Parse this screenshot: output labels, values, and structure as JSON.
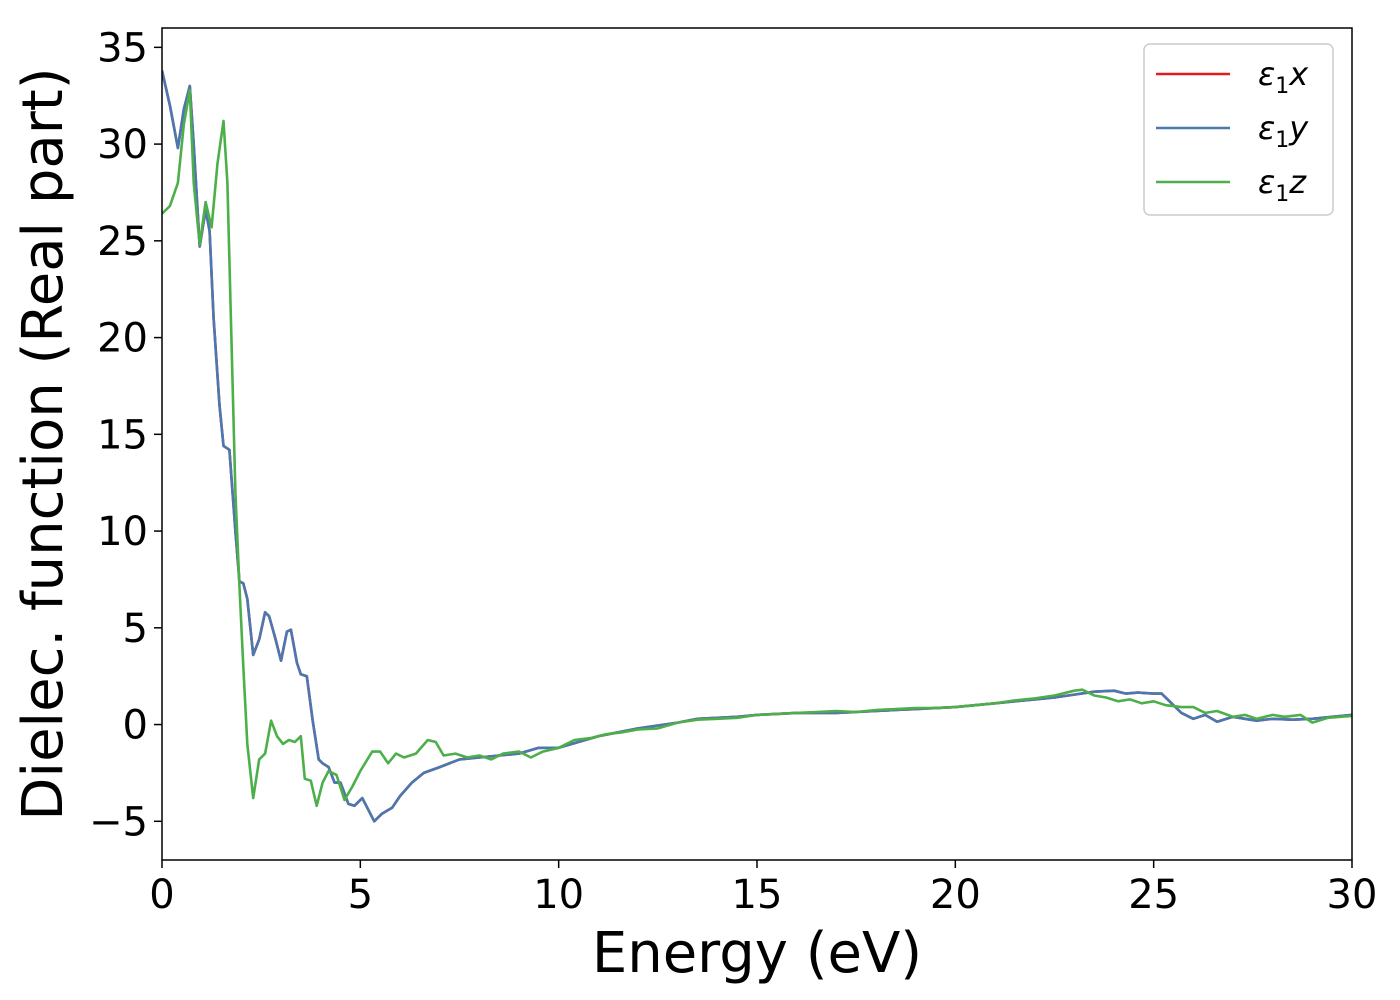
{
  "chart_data": {
    "type": "line",
    "title": "",
    "xlabel": "Energy (eV)",
    "ylabel": "Dielec. function (Real part)",
    "xlim": [
      0,
      30
    ],
    "ylim": [
      -7,
      36
    ],
    "xticks": [
      0,
      5,
      10,
      15,
      20,
      25,
      30
    ],
    "xtick_labels": [
      "0",
      "5",
      "10",
      "15",
      "20",
      "25",
      "30"
    ],
    "yticks": [
      -5,
      0,
      5,
      10,
      15,
      20,
      25,
      30,
      35
    ],
    "ytick_labels": [
      "−5",
      "0",
      "5",
      "10",
      "15",
      "20",
      "25",
      "30",
      "35"
    ],
    "grid": false,
    "legend_position": "top-right",
    "series": [
      {
        "name": "ε1x",
        "legend_main": "ε",
        "legend_sub": "1",
        "legend_tail": "x",
        "color": "#e41a1c",
        "points": [
          [
            0,
            33.8
          ],
          [
            0.2,
            32
          ],
          [
            0.4,
            29.8
          ],
          [
            0.55,
            31.8
          ],
          [
            0.7,
            33
          ],
          [
            0.8,
            30
          ],
          [
            0.95,
            24.7
          ],
          [
            1.1,
            26.6
          ],
          [
            1.2,
            25.5
          ],
          [
            1.3,
            21
          ],
          [
            1.45,
            16.5
          ],
          [
            1.55,
            14.4
          ],
          [
            1.7,
            14.2
          ],
          [
            1.85,
            10
          ],
          [
            1.95,
            7.4
          ],
          [
            2.05,
            7.3
          ],
          [
            2.15,
            6.5
          ],
          [
            2.3,
            3.6
          ],
          [
            2.45,
            4.4
          ],
          [
            2.6,
            5.8
          ],
          [
            2.7,
            5.6
          ],
          [
            2.85,
            4.5
          ],
          [
            3.0,
            3.3
          ],
          [
            3.15,
            4.8
          ],
          [
            3.25,
            4.9
          ],
          [
            3.4,
            3.2
          ],
          [
            3.5,
            2.6
          ],
          [
            3.65,
            2.5
          ],
          [
            3.8,
            0.2
          ],
          [
            3.95,
            -1.8
          ],
          [
            4.05,
            -2
          ],
          [
            4.2,
            -2.2
          ],
          [
            4.35,
            -3
          ],
          [
            4.5,
            -3
          ],
          [
            4.7,
            -4.1
          ],
          [
            4.85,
            -4.2
          ],
          [
            5.05,
            -3.8
          ],
          [
            5.15,
            -4.2
          ],
          [
            5.35,
            -5
          ],
          [
            5.55,
            -4.6
          ],
          [
            5.8,
            -4.3
          ],
          [
            6.0,
            -3.7
          ],
          [
            6.3,
            -3
          ],
          [
            6.6,
            -2.5
          ],
          [
            7.0,
            -2.2
          ],
          [
            7.5,
            -1.8
          ],
          [
            8.0,
            -1.7
          ],
          [
            8.5,
            -1.6
          ],
          [
            9.0,
            -1.5
          ],
          [
            9.5,
            -1.2
          ],
          [
            10.0,
            -1.2
          ],
          [
            10.5,
            -0.9
          ],
          [
            11.0,
            -0.6
          ],
          [
            11.5,
            -0.4
          ],
          [
            12.0,
            -0.2
          ],
          [
            12.5,
            -0.05
          ],
          [
            13.0,
            0.1
          ],
          [
            13.5,
            0.3
          ],
          [
            14.0,
            0.35
          ],
          [
            14.5,
            0.4
          ],
          [
            15.0,
            0.5
          ],
          [
            15.5,
            0.55
          ],
          [
            16.0,
            0.6
          ],
          [
            16.5,
            0.6
          ],
          [
            17.0,
            0.6
          ],
          [
            17.5,
            0.65
          ],
          [
            18.0,
            0.7
          ],
          [
            18.5,
            0.75
          ],
          [
            19.0,
            0.8
          ],
          [
            19.5,
            0.85
          ],
          [
            20.0,
            0.9
          ],
          [
            20.5,
            1.0
          ],
          [
            21.0,
            1.1
          ],
          [
            21.5,
            1.2
          ],
          [
            22.0,
            1.3
          ],
          [
            22.5,
            1.4
          ],
          [
            23.0,
            1.55
          ],
          [
            23.5,
            1.7
          ],
          [
            24.0,
            1.75
          ],
          [
            24.3,
            1.6
          ],
          [
            24.6,
            1.65
          ],
          [
            25.0,
            1.6
          ],
          [
            25.2,
            1.6
          ],
          [
            25.4,
            1.2
          ],
          [
            25.7,
            0.6
          ],
          [
            26.0,
            0.3
          ],
          [
            26.3,
            0.5
          ],
          [
            26.6,
            0.15
          ],
          [
            27.0,
            0.4
          ],
          [
            27.3,
            0.3
          ],
          [
            27.6,
            0.2
          ],
          [
            28.0,
            0.3
          ],
          [
            28.5,
            0.25
          ],
          [
            29.0,
            0.3
          ],
          [
            29.5,
            0.4
          ],
          [
            30.0,
            0.5
          ]
        ]
      },
      {
        "name": "ε1y",
        "legend_main": "ε",
        "legend_sub": "1",
        "legend_tail": "y",
        "color": "#4a78b0",
        "points": [
          [
            0,
            33.8
          ],
          [
            0.2,
            32
          ],
          [
            0.4,
            29.8
          ],
          [
            0.55,
            31.8
          ],
          [
            0.7,
            33
          ],
          [
            0.8,
            30
          ],
          [
            0.95,
            24.7
          ],
          [
            1.1,
            26.6
          ],
          [
            1.2,
            25.5
          ],
          [
            1.3,
            21
          ],
          [
            1.45,
            16.5
          ],
          [
            1.55,
            14.4
          ],
          [
            1.7,
            14.2
          ],
          [
            1.85,
            10
          ],
          [
            1.95,
            7.4
          ],
          [
            2.05,
            7.3
          ],
          [
            2.15,
            6.5
          ],
          [
            2.3,
            3.6
          ],
          [
            2.45,
            4.4
          ],
          [
            2.6,
            5.8
          ],
          [
            2.7,
            5.6
          ],
          [
            2.85,
            4.5
          ],
          [
            3.0,
            3.3
          ],
          [
            3.15,
            4.8
          ],
          [
            3.25,
            4.9
          ],
          [
            3.4,
            3.2
          ],
          [
            3.5,
            2.6
          ],
          [
            3.65,
            2.5
          ],
          [
            3.8,
            0.2
          ],
          [
            3.95,
            -1.8
          ],
          [
            4.05,
            -2
          ],
          [
            4.2,
            -2.2
          ],
          [
            4.35,
            -3
          ],
          [
            4.5,
            -3
          ],
          [
            4.7,
            -4.1
          ],
          [
            4.85,
            -4.2
          ],
          [
            5.05,
            -3.8
          ],
          [
            5.15,
            -4.2
          ],
          [
            5.35,
            -5
          ],
          [
            5.55,
            -4.6
          ],
          [
            5.8,
            -4.3
          ],
          [
            6.0,
            -3.7
          ],
          [
            6.3,
            -3
          ],
          [
            6.6,
            -2.5
          ],
          [
            7.0,
            -2.2
          ],
          [
            7.5,
            -1.8
          ],
          [
            8.0,
            -1.7
          ],
          [
            8.5,
            -1.6
          ],
          [
            9.0,
            -1.5
          ],
          [
            9.5,
            -1.2
          ],
          [
            10.0,
            -1.2
          ],
          [
            10.5,
            -0.9
          ],
          [
            11.0,
            -0.6
          ],
          [
            11.5,
            -0.4
          ],
          [
            12.0,
            -0.2
          ],
          [
            12.5,
            -0.05
          ],
          [
            13.0,
            0.1
          ],
          [
            13.5,
            0.3
          ],
          [
            14.0,
            0.35
          ],
          [
            14.5,
            0.4
          ],
          [
            15.0,
            0.5
          ],
          [
            15.5,
            0.55
          ],
          [
            16.0,
            0.6
          ],
          [
            16.5,
            0.6
          ],
          [
            17.0,
            0.6
          ],
          [
            17.5,
            0.65
          ],
          [
            18.0,
            0.7
          ],
          [
            18.5,
            0.75
          ],
          [
            19.0,
            0.8
          ],
          [
            19.5,
            0.85
          ],
          [
            20.0,
            0.9
          ],
          [
            20.5,
            1.0
          ],
          [
            21.0,
            1.1
          ],
          [
            21.5,
            1.2
          ],
          [
            22.0,
            1.3
          ],
          [
            22.5,
            1.4
          ],
          [
            23.0,
            1.55
          ],
          [
            23.5,
            1.7
          ],
          [
            24.0,
            1.75
          ],
          [
            24.3,
            1.6
          ],
          [
            24.6,
            1.65
          ],
          [
            25.0,
            1.6
          ],
          [
            25.2,
            1.6
          ],
          [
            25.4,
            1.2
          ],
          [
            25.7,
            0.6
          ],
          [
            26.0,
            0.3
          ],
          [
            26.3,
            0.5
          ],
          [
            26.6,
            0.15
          ],
          [
            27.0,
            0.4
          ],
          [
            27.3,
            0.3
          ],
          [
            27.6,
            0.2
          ],
          [
            28.0,
            0.3
          ],
          [
            28.5,
            0.25
          ],
          [
            29.0,
            0.3
          ],
          [
            29.5,
            0.4
          ],
          [
            30.0,
            0.5
          ]
        ]
      },
      {
        "name": "ε1z",
        "legend_main": "ε",
        "legend_sub": "1",
        "legend_tail": "z",
        "color": "#4daf4a",
        "points": [
          [
            0,
            26.4
          ],
          [
            0.2,
            26.8
          ],
          [
            0.4,
            28
          ],
          [
            0.55,
            31
          ],
          [
            0.7,
            32.8
          ],
          [
            0.8,
            28
          ],
          [
            0.95,
            24.8
          ],
          [
            1.1,
            27
          ],
          [
            1.25,
            25.7
          ],
          [
            1.4,
            29
          ],
          [
            1.55,
            31.2
          ],
          [
            1.65,
            28
          ],
          [
            1.75,
            20
          ],
          [
            1.85,
            12
          ],
          [
            1.95,
            7.2
          ],
          [
            2.05,
            3
          ],
          [
            2.15,
            -1
          ],
          [
            2.3,
            -3.8
          ],
          [
            2.45,
            -1.8
          ],
          [
            2.6,
            -1.5
          ],
          [
            2.75,
            0.2
          ],
          [
            2.9,
            -0.6
          ],
          [
            3.05,
            -1.0
          ],
          [
            3.2,
            -0.8
          ],
          [
            3.35,
            -0.9
          ],
          [
            3.5,
            -0.6
          ],
          [
            3.6,
            -2.8
          ],
          [
            3.75,
            -2.9
          ],
          [
            3.9,
            -4.2
          ],
          [
            4.05,
            -3.0
          ],
          [
            4.2,
            -2.4
          ],
          [
            4.4,
            -2.6
          ],
          [
            4.6,
            -3.9
          ],
          [
            4.8,
            -3.2
          ],
          [
            5.0,
            -2.4
          ],
          [
            5.3,
            -1.4
          ],
          [
            5.5,
            -1.4
          ],
          [
            5.7,
            -2.0
          ],
          [
            5.9,
            -1.5
          ],
          [
            6.1,
            -1.7
          ],
          [
            6.4,
            -1.5
          ],
          [
            6.7,
            -0.8
          ],
          [
            6.9,
            -0.9
          ],
          [
            7.1,
            -1.6
          ],
          [
            7.4,
            -1.5
          ],
          [
            7.7,
            -1.7
          ],
          [
            8.0,
            -1.6
          ],
          [
            8.3,
            -1.8
          ],
          [
            8.6,
            -1.5
          ],
          [
            9.0,
            -1.4
          ],
          [
            9.3,
            -1.7
          ],
          [
            9.6,
            -1.4
          ],
          [
            10.0,
            -1.2
          ],
          [
            10.4,
            -0.8
          ],
          [
            10.8,
            -0.7
          ],
          [
            11.2,
            -0.5
          ],
          [
            11.6,
            -0.4
          ],
          [
            12.0,
            -0.25
          ],
          [
            12.5,
            -0.2
          ],
          [
            13.0,
            0.1
          ],
          [
            13.5,
            0.25
          ],
          [
            14.0,
            0.3
          ],
          [
            14.5,
            0.35
          ],
          [
            15.0,
            0.5
          ],
          [
            15.5,
            0.55
          ],
          [
            16.0,
            0.6
          ],
          [
            16.5,
            0.65
          ],
          [
            17.0,
            0.7
          ],
          [
            17.5,
            0.65
          ],
          [
            18.0,
            0.75
          ],
          [
            18.5,
            0.8
          ],
          [
            19.0,
            0.85
          ],
          [
            19.5,
            0.85
          ],
          [
            20.0,
            0.9
          ],
          [
            20.5,
            1.0
          ],
          [
            21.0,
            1.1
          ],
          [
            21.5,
            1.25
          ],
          [
            22.0,
            1.35
          ],
          [
            22.5,
            1.5
          ],
          [
            23.0,
            1.75
          ],
          [
            23.2,
            1.8
          ],
          [
            23.5,
            1.5
          ],
          [
            23.8,
            1.4
          ],
          [
            24.1,
            1.2
          ],
          [
            24.4,
            1.3
          ],
          [
            24.7,
            1.1
          ],
          [
            25.0,
            1.2
          ],
          [
            25.3,
            1.0
          ],
          [
            25.7,
            0.9
          ],
          [
            26.0,
            0.9
          ],
          [
            26.3,
            0.6
          ],
          [
            26.6,
            0.7
          ],
          [
            27.0,
            0.4
          ],
          [
            27.3,
            0.5
          ],
          [
            27.6,
            0.3
          ],
          [
            28.0,
            0.5
          ],
          [
            28.3,
            0.4
          ],
          [
            28.7,
            0.5
          ],
          [
            29.0,
            0.1
          ],
          [
            29.4,
            0.35
          ],
          [
            29.7,
            0.4
          ],
          [
            30.0,
            0.45
          ]
        ]
      }
    ]
  }
}
